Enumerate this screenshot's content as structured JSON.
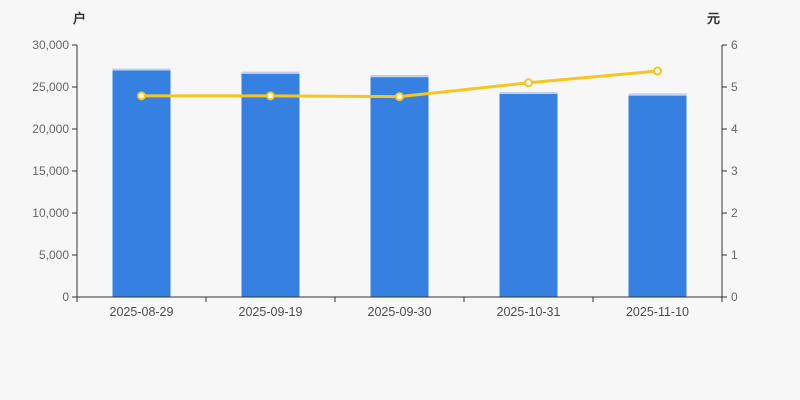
{
  "page": {
    "background_color": "#f7f7f7"
  },
  "chart_data": {
    "type": "bar",
    "title": "",
    "subtitle": "",
    "grid": false,
    "legend_visible": false,
    "categories": [
      "2025-08-29",
      "2025-09-19",
      "2025-09-30",
      "2025-10-31",
      "2025-11-10"
    ],
    "series": [
      {
        "type": "bar",
        "axis": "left",
        "color": "#3580e0",
        "cap_color": "#c3d3ec",
        "values": [
          27200,
          26800,
          26400,
          24400,
          24200
        ]
      },
      {
        "type": "line",
        "axis": "right",
        "color": "#f6c51f",
        "point_fill": "#ffffff",
        "values": [
          4.79,
          4.79,
          4.77,
          5.1,
          5.38
        ]
      }
    ],
    "left_axis": {
      "name": "户",
      "min": 0,
      "max": 30000,
      "step": 5000,
      "tick_labels": [
        "0",
        "5,000",
        "10,000",
        "15,000",
        "20,000",
        "25,000",
        "30,000"
      ]
    },
    "right_axis": {
      "name": "元",
      "min": 0,
      "max": 6,
      "step": 1,
      "tick_labels": [
        "0",
        "1",
        "2",
        "3",
        "4",
        "5",
        "6"
      ]
    },
    "axis_color": "#333333",
    "tick_label_color": "#666666",
    "category_label_color": "#4d4d4d"
  }
}
